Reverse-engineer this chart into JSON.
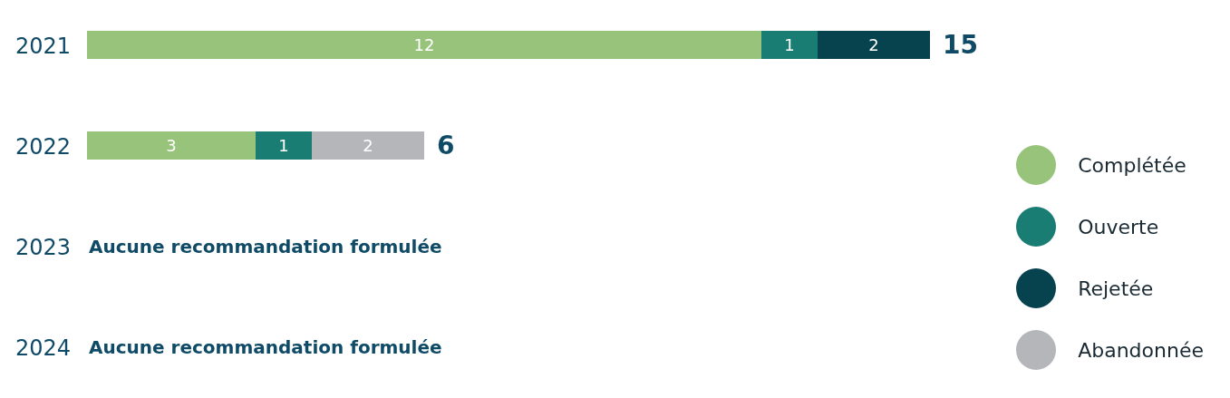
{
  "chart_data": {
    "type": "bar",
    "orientation": "horizontal",
    "stacked": true,
    "categories": [
      "2021",
      "2022",
      "2023",
      "2024"
    ],
    "series": [
      {
        "name": "Complétée",
        "color": "#97c37a",
        "values": [
          12,
          3,
          null,
          null
        ]
      },
      {
        "name": "Ouverte",
        "color": "#1a7d73",
        "values": [
          1,
          1,
          null,
          null
        ]
      },
      {
        "name": "Rejetée",
        "color": "#07424f",
        "values": [
          2,
          null,
          null,
          null
        ]
      },
      {
        "name": "Abandonnée",
        "color": "#b5b6ba",
        "values": [
          null,
          2,
          null,
          null
        ]
      }
    ],
    "data_labels": true,
    "totals": [
      "15",
      "6",
      null,
      null
    ],
    "tick_labels": "y",
    "legend": "right",
    "grid": false,
    "annotations": [
      "Aucune recommandation formulée",
      "Aucune recommandation formulée"
    ]
  }
}
